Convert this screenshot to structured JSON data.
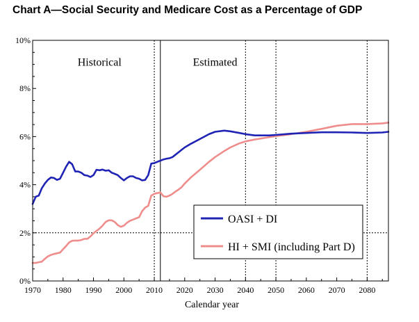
{
  "chart_data": {
    "type": "line",
    "title": "Chart A—Social Security and Medicare Cost as a Percentage of GDP",
    "xlabel": "Calendar year",
    "ylabel": "",
    "xlim": [
      1970,
      2087
    ],
    "ylim": [
      0,
      10
    ],
    "x_ticks": [
      1970,
      1980,
      1990,
      2000,
      2010,
      2020,
      2030,
      2040,
      2050,
      2060,
      2070,
      2080
    ],
    "y_ticks": [
      0,
      2,
      4,
      6,
      8,
      10
    ],
    "y_tick_labels": [
      "0%",
      "2%",
      "4%",
      "6%",
      "8%",
      "10%"
    ],
    "reference_lines": {
      "horizontal_y": [
        2
      ],
      "vertical_x_dotted": [
        2010,
        2040,
        2050,
        2080
      ],
      "vertical_x_solid": [
        2012
      ]
    },
    "annotations": [
      {
        "text": "Historical",
        "x": 1992,
        "y": 8.95
      },
      {
        "text": "Estimated",
        "x": 2030,
        "y": 8.95
      }
    ],
    "legend_position": "lower-right",
    "series": [
      {
        "name": "OASI + DI",
        "color": "#1f24b5",
        "x": [
          1970,
          1971,
          1972,
          1973,
          1974,
          1975,
          1976,
          1977,
          1978,
          1979,
          1980,
          1981,
          1982,
          1983,
          1984,
          1985,
          1986,
          1987,
          1988,
          1989,
          1990,
          1991,
          1992,
          1993,
          1994,
          1995,
          1996,
          1997,
          1998,
          1999,
          2000,
          2001,
          2002,
          2003,
          2004,
          2005,
          2006,
          2007,
          2008,
          2009,
          2010,
          2011,
          2012,
          2013,
          2014,
          2015,
          2016,
          2017,
          2018,
          2019,
          2020,
          2022,
          2025,
          2028,
          2030,
          2033,
          2035,
          2038,
          2040,
          2043,
          2045,
          2048,
          2050,
          2053,
          2055,
          2060,
          2065,
          2070,
          2075,
          2080,
          2085,
          2087
        ],
        "values": [
          3.2,
          3.5,
          3.55,
          3.85,
          4.05,
          4.2,
          4.3,
          4.28,
          4.2,
          4.25,
          4.5,
          4.75,
          4.95,
          4.85,
          4.55,
          4.55,
          4.5,
          4.4,
          4.38,
          4.32,
          4.4,
          4.62,
          4.6,
          4.63,
          4.58,
          4.6,
          4.5,
          4.45,
          4.4,
          4.28,
          4.18,
          4.28,
          4.35,
          4.35,
          4.28,
          4.25,
          4.18,
          4.2,
          4.4,
          4.88,
          4.9,
          4.95,
          5.0,
          5.05,
          5.08,
          5.1,
          5.15,
          5.25,
          5.35,
          5.45,
          5.55,
          5.7,
          5.9,
          6.1,
          6.2,
          6.25,
          6.22,
          6.15,
          6.1,
          6.05,
          6.05,
          6.05,
          6.07,
          6.1,
          6.12,
          6.15,
          6.18,
          6.18,
          6.17,
          6.15,
          6.17,
          6.2
        ]
      },
      {
        "name": "HI + SMI (including Part D)",
        "color": "#ef8d8d",
        "x": [
          1970,
          1971,
          1972,
          1973,
          1974,
          1975,
          1976,
          1977,
          1978,
          1979,
          1980,
          1981,
          1982,
          1983,
          1984,
          1985,
          1986,
          1987,
          1988,
          1989,
          1990,
          1991,
          1992,
          1993,
          1994,
          1995,
          1996,
          1997,
          1998,
          1999,
          2000,
          2001,
          2002,
          2003,
          2004,
          2005,
          2006,
          2007,
          2008,
          2009,
          2010,
          2011,
          2012,
          2013,
          2014,
          2015,
          2016,
          2017,
          2018,
          2019,
          2020,
          2022,
          2025,
          2028,
          2030,
          2033,
          2035,
          2038,
          2040,
          2043,
          2045,
          2048,
          2050,
          2055,
          2060,
          2065,
          2070,
          2075,
          2080,
          2085,
          2087
        ],
        "values": [
          0.75,
          0.75,
          0.78,
          0.8,
          0.92,
          1.02,
          1.08,
          1.12,
          1.15,
          1.18,
          1.32,
          1.45,
          1.6,
          1.67,
          1.68,
          1.68,
          1.7,
          1.75,
          1.75,
          1.85,
          1.98,
          2.08,
          2.18,
          2.3,
          2.45,
          2.52,
          2.52,
          2.45,
          2.32,
          2.25,
          2.3,
          2.42,
          2.5,
          2.55,
          2.6,
          2.65,
          2.9,
          3.05,
          3.12,
          3.55,
          3.62,
          3.65,
          3.68,
          3.52,
          3.5,
          3.55,
          3.62,
          3.72,
          3.8,
          3.9,
          4.05,
          4.3,
          4.62,
          4.95,
          5.15,
          5.4,
          5.55,
          5.72,
          5.8,
          5.88,
          5.92,
          5.98,
          6.02,
          6.1,
          6.2,
          6.32,
          6.45,
          6.52,
          6.52,
          6.55,
          6.58
        ]
      }
    ]
  }
}
